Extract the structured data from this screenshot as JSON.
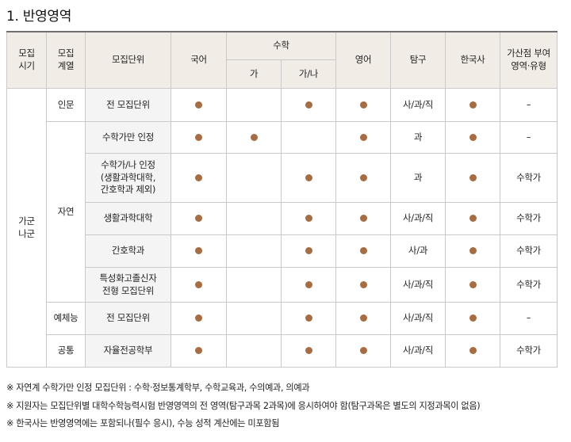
{
  "title": "1. 반영영역",
  "header": {
    "period": "모집\n시기",
    "track": "모집\n계열",
    "unit": "모집단위",
    "korean": "국어",
    "math": "수학",
    "math_ga": "가",
    "math_gana": "가/나",
    "english": "영어",
    "inquiry": "탐구",
    "history": "한국사",
    "bonus": "가산점 부여\n영역·유형"
  },
  "period_value": "가군\n나군",
  "groups": [
    {
      "track": "인문",
      "rows": [
        {
          "unit": "전 모집단위",
          "korean": true,
          "math_ga": false,
          "math_gana": true,
          "english": true,
          "inquiry": "사/과/직",
          "history": true,
          "bonus": "–"
        }
      ]
    },
    {
      "track": "자연",
      "rows": [
        {
          "unit": "수학가만 인정",
          "korean": true,
          "math_ga": true,
          "math_gana": false,
          "english": true,
          "inquiry": "과",
          "history": true,
          "bonus": "–"
        },
        {
          "unit": "수학가/나 인정\n(생활과학대학,\n간호학과 제외)",
          "korean": true,
          "math_ga": false,
          "math_gana": true,
          "english": true,
          "inquiry": "과",
          "history": true,
          "bonus": "수학가"
        },
        {
          "unit": "생활과학대학",
          "korean": true,
          "math_ga": false,
          "math_gana": true,
          "english": true,
          "inquiry": "사/과/직",
          "history": true,
          "bonus": "수학가"
        },
        {
          "unit": "간호학과",
          "korean": true,
          "math_ga": false,
          "math_gana": true,
          "english": true,
          "inquiry": "사/과",
          "history": true,
          "bonus": "수학가"
        },
        {
          "unit": "특성화고졸신자\n전형 모집단위",
          "korean": true,
          "math_ga": false,
          "math_gana": true,
          "english": true,
          "inquiry": "사/과/직",
          "history": true,
          "bonus": "수학가"
        }
      ]
    },
    {
      "track": "예체능",
      "rows": [
        {
          "unit": "전 모집단위",
          "korean": true,
          "math_ga": false,
          "math_gana": true,
          "english": true,
          "inquiry": "사/과/직",
          "history": true,
          "bonus": "–"
        }
      ]
    },
    {
      "track": "공통",
      "rows": [
        {
          "unit": "자율전공학부",
          "korean": true,
          "math_ga": false,
          "math_gana": true,
          "english": true,
          "inquiry": "사/과/직",
          "history": true,
          "bonus": "수학가"
        }
      ]
    }
  ],
  "notes": [
    "※ 자연계 수학가만 인정 모집단위 : 수학·정보통계학부, 수학교육과, 수의예과, 의예과",
    "※ 지원자는 모집단위별 대학수학능력시험 반영영역의 전 영역(탐구과목 2과목)에 응시하여야 함(탐구과목은 별도의 지정과목이 없음)",
    "※ 한국사는 반영영역에는 포함되나(필수 응시), 수능 성적 계산에는 미포함됨"
  ],
  "colors": {
    "dot": "#a66d44",
    "header_bg": "#f1ece6",
    "unit_bg": "#f4f4f4"
  }
}
